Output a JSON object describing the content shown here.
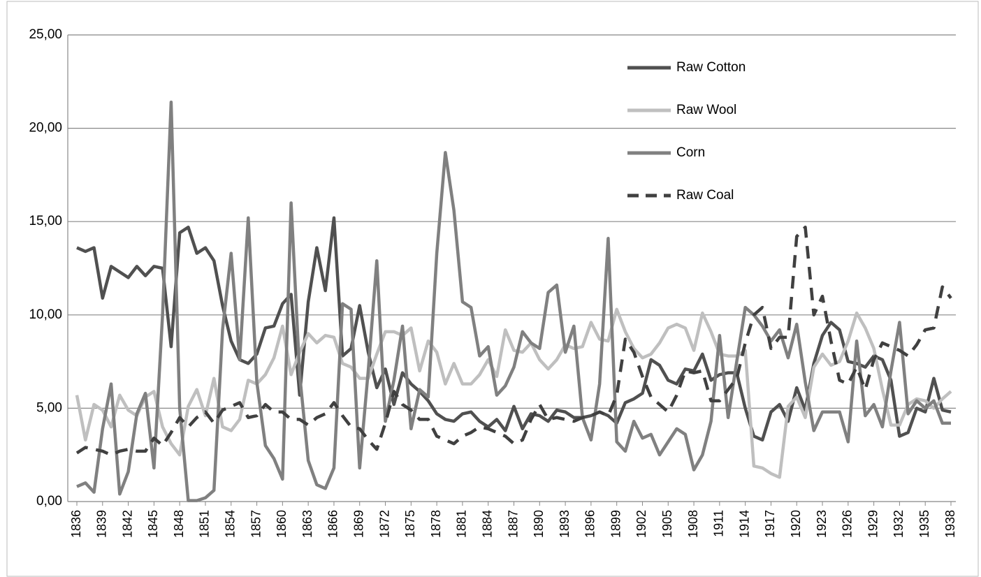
{
  "chart_data": {
    "type": "line",
    "x": [
      1836,
      1837,
      1838,
      1839,
      1840,
      1841,
      1842,
      1843,
      1844,
      1845,
      1846,
      1847,
      1848,
      1849,
      1850,
      1851,
      1852,
      1853,
      1854,
      1855,
      1856,
      1857,
      1858,
      1859,
      1860,
      1861,
      1862,
      1863,
      1864,
      1865,
      1866,
      1867,
      1868,
      1869,
      1870,
      1871,
      1872,
      1873,
      1874,
      1875,
      1876,
      1877,
      1878,
      1879,
      1880,
      1881,
      1882,
      1883,
      1884,
      1885,
      1886,
      1887,
      1888,
      1889,
      1890,
      1891,
      1892,
      1893,
      1894,
      1895,
      1896,
      1897,
      1898,
      1899,
      1900,
      1901,
      1902,
      1903,
      1904,
      1905,
      1906,
      1907,
      1908,
      1909,
      1910,
      1911,
      1912,
      1913,
      1914,
      1915,
      1916,
      1917,
      1918,
      1919,
      1920,
      1921,
      1922,
      1923,
      1924,
      1925,
      1926,
      1927,
      1928,
      1929,
      1930,
      1931,
      1932,
      1933,
      1934,
      1935,
      1936,
      1937,
      1938
    ],
    "series": [
      {
        "name": "Raw Cotton",
        "color": "#505050",
        "dashed": false,
        "values": [
          13.6,
          13.4,
          13.6,
          10.9,
          12.6,
          12.3,
          12.0,
          12.6,
          12.1,
          12.6,
          12.5,
          8.3,
          14.4,
          14.7,
          13.3,
          13.6,
          12.9,
          10.5,
          8.6,
          7.6,
          7.4,
          7.9,
          9.3,
          9.4,
          10.6,
          11.1,
          5.7,
          10.7,
          13.6,
          11.3,
          15.2,
          7.8,
          8.2,
          10.5,
          8.0,
          6.1,
          7.1,
          5.2,
          6.9,
          6.3,
          5.9,
          5.4,
          4.7,
          4.4,
          4.3,
          4.7,
          4.8,
          4.3,
          4.0,
          4.4,
          3.8,
          5.1,
          3.9,
          4.7,
          4.6,
          4.3,
          4.9,
          4.8,
          4.5,
          4.5,
          4.6,
          4.8,
          4.6,
          4.2,
          5.3,
          5.5,
          5.8,
          7.6,
          7.3,
          6.5,
          6.3,
          7.1,
          7.0,
          7.9,
          6.5,
          6.8,
          6.9,
          6.9,
          5.0,
          3.5,
          3.3,
          4.8,
          5.2,
          4.3,
          6.1,
          4.9,
          7.4,
          8.9,
          9.6,
          9.2,
          7.5,
          7.4,
          7.2,
          7.8,
          7.6,
          6.5,
          3.5,
          3.7,
          5.0,
          4.8,
          6.6,
          4.9,
          4.8
        ]
      },
      {
        "name": "Raw Wool",
        "color": "#bfbfbf",
        "dashed": false,
        "values": [
          5.7,
          3.3,
          5.2,
          4.9,
          4.0,
          5.7,
          4.9,
          4.6,
          5.6,
          5.9,
          4.0,
          3.1,
          2.5,
          5.1,
          6.0,
          4.6,
          6.6,
          4.0,
          3.8,
          4.4,
          6.5,
          6.3,
          6.8,
          7.7,
          9.4,
          6.8,
          8.0,
          9.0,
          8.5,
          8.9,
          8.8,
          7.4,
          7.2,
          6.6,
          6.6,
          7.9,
          9.1,
          9.1,
          8.9,
          9.3,
          7.0,
          8.6,
          8.0,
          6.3,
          7.4,
          6.3,
          6.3,
          6.8,
          7.6,
          6.7,
          9.2,
          8.1,
          8.0,
          8.5,
          7.6,
          7.1,
          7.6,
          8.4,
          8.2,
          8.3,
          9.6,
          8.7,
          8.6,
          10.3,
          9.1,
          8.2,
          7.7,
          7.9,
          8.5,
          9.3,
          9.5,
          9.3,
          8.1,
          10.1,
          9.1,
          7.9,
          7.8,
          7.8,
          8.1,
          1.9,
          1.8,
          1.5,
          1.3,
          5.1,
          5.6,
          4.5,
          7.2,
          7.9,
          7.3,
          7.5,
          8.6,
          10.1,
          9.3,
          8.2,
          6.0,
          4.1,
          4.1,
          5.2,
          5.5,
          5.4,
          5.0,
          5.5,
          5.9
        ]
      },
      {
        "name": "Corn",
        "color": "#808080",
        "dashed": false,
        "values": [
          0.8,
          1.0,
          0.5,
          3.9,
          6.3,
          0.4,
          1.6,
          4.7,
          5.8,
          1.8,
          10.0,
          21.4,
          5.0,
          0.05,
          0.05,
          0.2,
          0.6,
          9.2,
          13.3,
          7.6,
          15.2,
          6.4,
          3.0,
          2.3,
          1.2,
          16.0,
          6.8,
          2.2,
          0.9,
          0.7,
          1.8,
          10.6,
          10.3,
          1.8,
          7.0,
          12.9,
          4.3,
          6.5,
          9.4,
          3.9,
          6.0,
          5.6,
          13.3,
          18.7,
          15.6,
          10.7,
          10.4,
          7.8,
          8.3,
          5.7,
          6.2,
          7.2,
          9.1,
          8.5,
          8.2,
          11.2,
          11.6,
          8.0,
          9.4,
          4.5,
          3.3,
          6.3,
          14.1,
          3.2,
          2.7,
          4.3,
          3.4,
          3.6,
          2.5,
          3.2,
          3.9,
          3.6,
          1.7,
          2.5,
          4.3,
          8.9,
          4.5,
          7.5,
          10.4,
          10.0,
          9.4,
          8.6,
          9.2,
          7.7,
          9.5,
          6.4,
          3.8,
          4.8,
          4.8,
          4.8,
          3.2,
          8.6,
          4.6,
          5.2,
          4.0,
          7.0,
          9.6,
          4.7,
          5.4,
          5.0,
          5.4,
          4.2,
          4.2
        ]
      },
      {
        "name": "Raw Coal",
        "color": "#404040",
        "dashed": true,
        "values": [
          2.6,
          2.9,
          2.8,
          2.7,
          2.5,
          2.7,
          2.8,
          2.7,
          2.7,
          3.4,
          3.0,
          3.7,
          4.5,
          4.0,
          4.5,
          4.8,
          4.2,
          4.9,
          5.1,
          5.3,
          4.5,
          4.6,
          5.2,
          4.8,
          4.8,
          4.4,
          4.4,
          4.1,
          4.5,
          4.7,
          5.3,
          4.6,
          4.0,
          3.9,
          3.3,
          2.8,
          4.2,
          5.9,
          5.2,
          4.9,
          4.4,
          4.4,
          3.5,
          3.3,
          3.1,
          3.5,
          3.7,
          4.0,
          3.9,
          3.7,
          3.5,
          3.1,
          3.3,
          4.4,
          5.2,
          4.4,
          4.5,
          4.4,
          4.3,
          4.5,
          4.6,
          4.8,
          4.6,
          5.7,
          8.7,
          8.0,
          6.7,
          5.6,
          5.2,
          4.8,
          5.7,
          7.0,
          6.9,
          7.0,
          5.4,
          5.4,
          6.0,
          6.6,
          8.5,
          10.0,
          10.4,
          8.2,
          8.8,
          8.8,
          14.2,
          14.7,
          10.0,
          11.0,
          8.6,
          6.5,
          6.3,
          7.2,
          6.0,
          7.6,
          8.5,
          8.3,
          8.1,
          7.8,
          8.4,
          9.2,
          9.3,
          11.5,
          10.9
        ]
      }
    ],
    "xlim": [
      1836,
      1938
    ],
    "xticks": [
      1836,
      1839,
      1842,
      1845,
      1848,
      1851,
      1854,
      1857,
      1860,
      1863,
      1866,
      1869,
      1872,
      1875,
      1878,
      1881,
      1884,
      1887,
      1890,
      1893,
      1896,
      1899,
      1902,
      1905,
      1908,
      1911,
      1914,
      1917,
      1920,
      1923,
      1926,
      1929,
      1932,
      1935,
      1938
    ],
    "ylim": [
      0,
      25
    ],
    "yticks": [
      {
        "value": 0,
        "label": "0,00"
      },
      {
        "value": 5,
        "label": "5,00"
      },
      {
        "value": 10,
        "label": "10,00"
      },
      {
        "value": 15,
        "label": "15,00"
      },
      {
        "value": 20,
        "label": "20,00"
      },
      {
        "value": 25,
        "label": "25,00"
      }
    ],
    "grid": true,
    "legend": "upper right"
  }
}
